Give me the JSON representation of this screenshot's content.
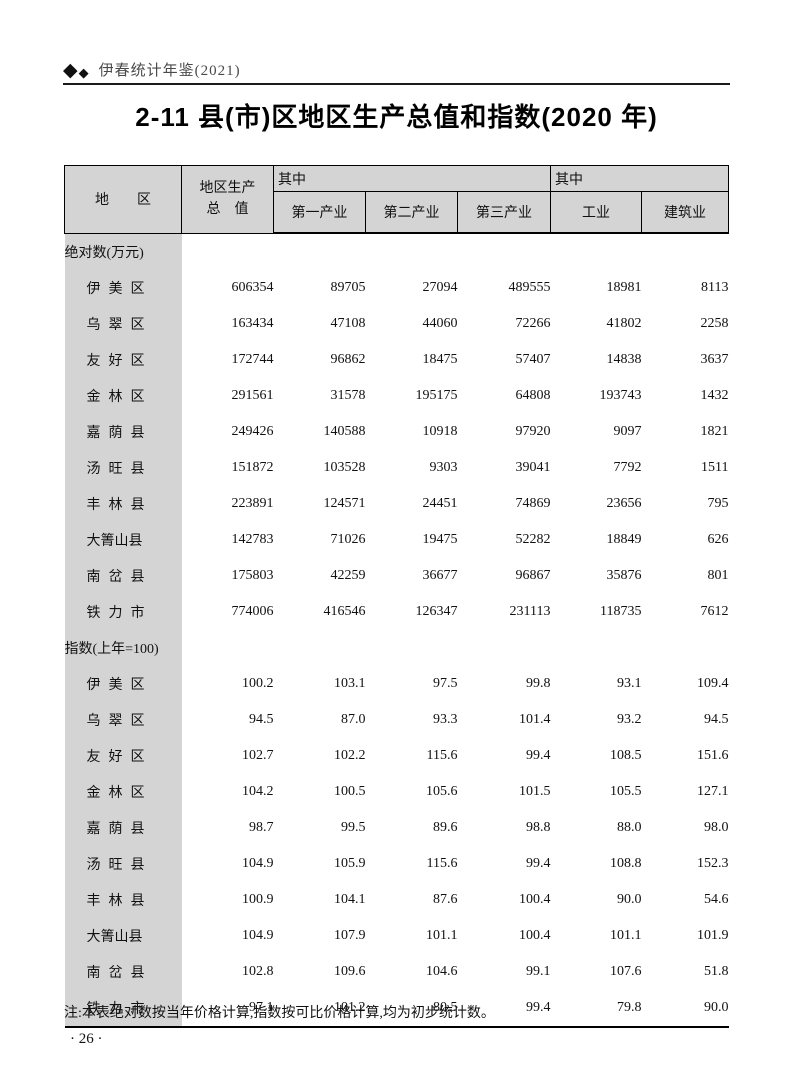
{
  "page": {
    "band_title": "伊春统计年鉴(2021)",
    "title": "2-11 县(市)区地区生产总值和指数(2020 年)",
    "note": "注:本表绝对数按当年价格计算,指数按可比价格计算,均为初步统计数。",
    "page_number": "· 26 ·"
  },
  "icons": {
    "diamond_large": "◆",
    "diamond_small": "◆"
  },
  "table": {
    "stub_header": "地　　区",
    "gdp_header_line1": "地区生产",
    "gdp_header_line2": "总　值",
    "group1_header": "其中",
    "group2_header": "其中",
    "sub_headers": [
      "第一产业",
      "第二产业",
      "第三产业",
      "工业",
      "建筑业"
    ],
    "sections": [
      {
        "label": "绝对数(万元)",
        "rows": [
          {
            "region": "伊 美 区",
            "values": [
              "606354",
              "89705",
              "27094",
              "489555",
              "18981",
              "8113"
            ]
          },
          {
            "region": "乌 翠 区",
            "values": [
              "163434",
              "47108",
              "44060",
              "72266",
              "41802",
              "2258"
            ]
          },
          {
            "region": "友 好 区",
            "values": [
              "172744",
              "96862",
              "18475",
              "57407",
              "14838",
              "3637"
            ]
          },
          {
            "region": "金 林 区",
            "values": [
              "291561",
              "31578",
              "195175",
              "64808",
              "193743",
              "1432"
            ]
          },
          {
            "region": "嘉 荫 县",
            "values": [
              "249426",
              "140588",
              "10918",
              "97920",
              "9097",
              "1821"
            ]
          },
          {
            "region": "汤 旺 县",
            "values": [
              "151872",
              "103528",
              "9303",
              "39041",
              "7792",
              "1511"
            ]
          },
          {
            "region": "丰 林 县",
            "values": [
              "223891",
              "124571",
              "24451",
              "74869",
              "23656",
              "795"
            ]
          },
          {
            "region": "大箐山县",
            "values": [
              "142783",
              "71026",
              "19475",
              "52282",
              "18849",
              "626"
            ]
          },
          {
            "region": "南 岔 县",
            "values": [
              "175803",
              "42259",
              "36677",
              "96867",
              "35876",
              "801"
            ]
          },
          {
            "region": "铁 力 市",
            "values": [
              "774006",
              "416546",
              "126347",
              "231113",
              "118735",
              "7612"
            ]
          }
        ]
      },
      {
        "label": "指数(上年=100)",
        "rows": [
          {
            "region": "伊 美 区",
            "values": [
              "100.2",
              "103.1",
              "97.5",
              "99.8",
              "93.1",
              "109.4"
            ]
          },
          {
            "region": "乌 翠 区",
            "values": [
              "94.5",
              "87.0",
              "93.3",
              "101.4",
              "93.2",
              "94.5"
            ]
          },
          {
            "region": "友 好 区",
            "values": [
              "102.7",
              "102.2",
              "115.6",
              "99.4",
              "108.5",
              "151.6"
            ]
          },
          {
            "region": "金 林 区",
            "values": [
              "104.2",
              "100.5",
              "105.6",
              "101.5",
              "105.5",
              "127.1"
            ]
          },
          {
            "region": "嘉 荫 县",
            "values": [
              "98.7",
              "99.5",
              "89.6",
              "98.8",
              "88.0",
              "98.0"
            ]
          },
          {
            "region": "汤 旺 县",
            "values": [
              "104.9",
              "105.9",
              "115.6",
              "99.4",
              "108.8",
              "152.3"
            ]
          },
          {
            "region": "丰 林 县",
            "values": [
              "100.9",
              "104.1",
              "87.6",
              "100.4",
              "90.0",
              "54.6"
            ]
          },
          {
            "region": "大箐山县",
            "values": [
              "104.9",
              "107.9",
              "101.1",
              "100.4",
              "101.1",
              "101.9"
            ]
          },
          {
            "region": "南 岔 县",
            "values": [
              "102.8",
              "109.6",
              "104.6",
              "99.1",
              "107.6",
              "51.8"
            ]
          },
          {
            "region": "铁 力 市",
            "values": [
              "97.1",
              "101.2",
              "80.5",
              "99.4",
              "79.8",
              "90.0"
            ]
          }
        ]
      }
    ]
  }
}
